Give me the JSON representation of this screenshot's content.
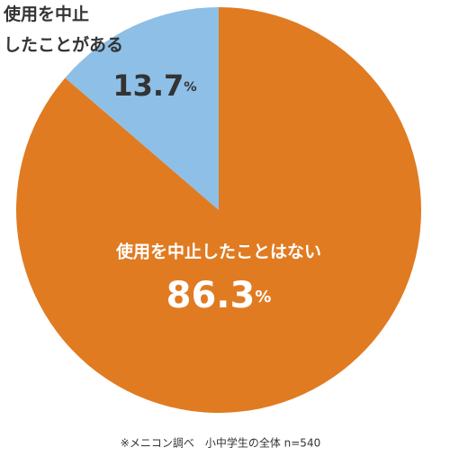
{
  "chart_data": {
    "type": "pie",
    "categories": [
      "使用を中止したことはない",
      "使用を中止\nしたことがある"
    ],
    "values": [
      86.3,
      13.7
    ],
    "value_labels": [
      "86.3%",
      "13.7%"
    ],
    "colors": [
      "#e07b22",
      "#8ebfe6"
    ],
    "note": "※メニコン調べ　小中学生の全体 n=540"
  }
}
